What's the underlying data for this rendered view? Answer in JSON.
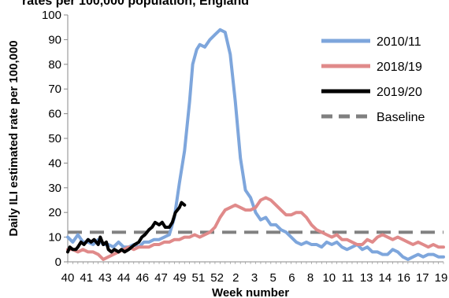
{
  "chart_data": {
    "type": "line",
    "title": "rates per 100,000 population, England",
    "xlabel": "Week number",
    "ylabel": "Daily ILI estimated rate per 100,000",
    "ylim": [
      0,
      100
    ],
    "yticks": [
      0,
      10,
      20,
      30,
      40,
      50,
      60,
      70,
      80,
      90,
      100
    ],
    "grid": false,
    "legend_position": "right",
    "x_tick_labels": [
      "40",
      "41",
      "43",
      "44",
      "46",
      "47",
      "49",
      "51",
      "52",
      "2",
      "3",
      "5",
      "6",
      "8",
      "10",
      "11",
      "13",
      "14",
      "16",
      "17",
      "19"
    ],
    "series": [
      {
        "name": "2010/11",
        "color": "#7ea6dc",
        "values": [
          [
            0,
            10
          ],
          [
            0.5,
            8
          ],
          [
            1,
            11
          ],
          [
            1.5,
            8
          ],
          [
            2,
            8
          ],
          [
            2.5,
            7
          ],
          [
            3,
            9
          ],
          [
            3.5,
            7
          ],
          [
            4,
            7
          ],
          [
            4.5,
            6
          ],
          [
            5,
            8
          ],
          [
            5.5,
            6
          ],
          [
            6,
            6
          ],
          [
            6.5,
            7
          ],
          [
            7,
            6
          ],
          [
            7.5,
            8
          ],
          [
            8,
            8
          ],
          [
            8.5,
            9
          ],
          [
            9,
            9
          ],
          [
            9.5,
            10
          ],
          [
            10,
            11
          ],
          [
            10.5,
            18
          ],
          [
            11,
            32
          ],
          [
            11.5,
            45
          ],
          [
            12,
            65
          ],
          [
            12.3,
            80
          ],
          [
            12.7,
            86
          ],
          [
            13,
            88
          ],
          [
            13.5,
            87
          ],
          [
            14,
            90
          ],
          [
            14.5,
            92
          ],
          [
            15,
            94
          ],
          [
            15.5,
            93
          ],
          [
            16,
            84
          ],
          [
            16.5,
            65
          ],
          [
            17,
            42
          ],
          [
            17.5,
            29
          ],
          [
            18,
            26
          ],
          [
            18.5,
            20
          ],
          [
            19,
            17
          ],
          [
            19.5,
            18
          ],
          [
            20,
            15
          ],
          [
            20.5,
            15
          ],
          [
            21,
            13
          ],
          [
            21.5,
            12
          ],
          [
            22,
            10
          ],
          [
            22.5,
            8
          ],
          [
            23,
            7
          ],
          [
            23.5,
            8
          ],
          [
            24,
            7
          ],
          [
            24.5,
            7
          ],
          [
            25,
            6
          ],
          [
            25.5,
            8
          ],
          [
            26,
            7
          ],
          [
            26.5,
            8
          ],
          [
            27,
            6
          ],
          [
            27.5,
            5
          ],
          [
            28,
            6
          ],
          [
            28.5,
            7
          ],
          [
            29,
            5
          ],
          [
            29.5,
            6
          ],
          [
            30,
            4
          ],
          [
            30.5,
            4
          ],
          [
            31,
            3
          ],
          [
            31.5,
            3
          ],
          [
            32,
            5
          ],
          [
            32.5,
            4
          ],
          [
            33,
            2
          ],
          [
            33.5,
            1
          ],
          [
            34,
            2
          ],
          [
            34.5,
            3
          ],
          [
            35,
            2
          ],
          [
            35.5,
            3
          ],
          [
            36,
            3
          ],
          [
            36.5,
            2
          ],
          [
            37,
            2
          ]
        ]
      },
      {
        "name": "2018/19",
        "color": "#e08a8a",
        "values": [
          [
            0,
            5
          ],
          [
            0.5,
            5
          ],
          [
            1,
            4
          ],
          [
            1.5,
            5
          ],
          [
            2,
            4
          ],
          [
            2.5,
            4
          ],
          [
            3,
            3
          ],
          [
            3.5,
            1
          ],
          [
            4,
            2
          ],
          [
            4.5,
            3
          ],
          [
            5,
            4
          ],
          [
            5.5,
            5
          ],
          [
            6,
            6
          ],
          [
            6.5,
            5
          ],
          [
            7,
            6
          ],
          [
            7.5,
            6
          ],
          [
            8,
            6
          ],
          [
            8.5,
            7
          ],
          [
            9,
            7
          ],
          [
            9.5,
            8
          ],
          [
            10,
            8
          ],
          [
            10.5,
            9
          ],
          [
            11,
            9
          ],
          [
            11.5,
            10
          ],
          [
            12,
            10
          ],
          [
            12.5,
            11
          ],
          [
            13,
            10
          ],
          [
            13.5,
            11
          ],
          [
            14,
            12
          ],
          [
            14.5,
            14
          ],
          [
            15,
            18
          ],
          [
            15.5,
            21
          ],
          [
            16,
            22
          ],
          [
            16.5,
            23
          ],
          [
            17,
            22
          ],
          [
            17.5,
            21
          ],
          [
            18,
            21
          ],
          [
            18.5,
            22
          ],
          [
            19,
            25
          ],
          [
            19.5,
            26
          ],
          [
            20,
            25
          ],
          [
            20.5,
            23
          ],
          [
            21,
            21
          ],
          [
            21.5,
            19
          ],
          [
            22,
            19
          ],
          [
            22.5,
            20
          ],
          [
            23,
            20
          ],
          [
            23.5,
            18
          ],
          [
            24,
            15
          ],
          [
            24.5,
            13
          ],
          [
            25,
            12
          ],
          [
            25.5,
            11
          ],
          [
            26,
            10
          ],
          [
            26.5,
            11
          ],
          [
            27,
            9
          ],
          [
            27.5,
            9
          ],
          [
            28,
            8
          ],
          [
            28.5,
            7
          ],
          [
            29,
            7
          ],
          [
            29.5,
            9
          ],
          [
            30,
            8
          ],
          [
            30.5,
            10
          ],
          [
            31,
            11
          ],
          [
            31.5,
            10
          ],
          [
            32,
            9
          ],
          [
            32.5,
            10
          ],
          [
            33,
            9
          ],
          [
            33.5,
            8
          ],
          [
            34,
            7
          ],
          [
            34.5,
            8
          ],
          [
            35,
            7
          ],
          [
            35.5,
            6
          ],
          [
            36,
            7
          ],
          [
            36.5,
            6
          ],
          [
            37,
            6
          ]
        ]
      },
      {
        "name": "2019/20",
        "color": "#000000",
        "values": [
          [
            0,
            4
          ],
          [
            0.2,
            6
          ],
          [
            0.5,
            5
          ],
          [
            0.8,
            5
          ],
          [
            1,
            6
          ],
          [
            1.3,
            8
          ],
          [
            1.6,
            7
          ],
          [
            2,
            9
          ],
          [
            2.3,
            8
          ],
          [
            2.6,
            9
          ],
          [
            3,
            7
          ],
          [
            3.2,
            10
          ],
          [
            3.5,
            7
          ],
          [
            3.8,
            8
          ],
          [
            4,
            5
          ],
          [
            4.3,
            4
          ],
          [
            4.6,
            5
          ],
          [
            5,
            4
          ],
          [
            5.3,
            5
          ],
          [
            5.6,
            4
          ],
          [
            6,
            5
          ],
          [
            6.3,
            6
          ],
          [
            6.6,
            7
          ],
          [
            7,
            8
          ],
          [
            7.3,
            10
          ],
          [
            7.6,
            11
          ],
          [
            8,
            13
          ],
          [
            8.3,
            14
          ],
          [
            8.6,
            16
          ],
          [
            9,
            15
          ],
          [
            9.3,
            16
          ],
          [
            9.6,
            14
          ],
          [
            10,
            14
          ],
          [
            10.3,
            16
          ],
          [
            10.6,
            20
          ],
          [
            11,
            22
          ],
          [
            11.2,
            24
          ],
          [
            11.5,
            23
          ]
        ]
      }
    ],
    "baseline": {
      "name": "Baseline",
      "value": 12,
      "color": "#808080",
      "style": "dashed"
    }
  }
}
